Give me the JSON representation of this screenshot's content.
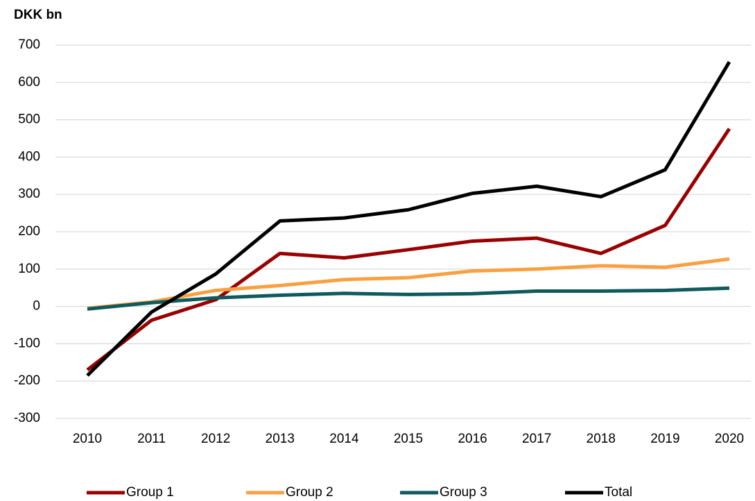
{
  "chart_data": {
    "type": "line",
    "y_label": "DKK bn",
    "categories": [
      "2010",
      "2011",
      "2012",
      "2013",
      "2014",
      "2015",
      "2016",
      "2017",
      "2018",
      "2019",
      "2020"
    ],
    "series": [
      {
        "name": "Group 1",
        "color": "#990000",
        "values": [
          -170,
          -37,
          18,
          142,
          130,
          152,
          175,
          183,
          142,
          217,
          476
        ]
      },
      {
        "name": "Group 2",
        "color": "#f9a040",
        "values": [
          -5,
          12,
          43,
          56,
          72,
          77,
          95,
          100,
          109,
          105,
          127
        ]
      },
      {
        "name": "Group 3",
        "color": "#0e5a5c",
        "values": [
          -7,
          10,
          23,
          30,
          35,
          32,
          34,
          41,
          41,
          43,
          49
        ]
      },
      {
        "name": "Total",
        "color": "#000000",
        "values": [
          -185,
          -15,
          87,
          229,
          237,
          259,
          303,
          322,
          294,
          366,
          655
        ]
      }
    ],
    "ylim": [
      -300,
      700
    ],
    "yticks": [
      -300,
      -200,
      -100,
      0,
      100,
      200,
      300,
      400,
      500,
      600,
      700
    ],
    "grid": true,
    "legend": "bottom"
  }
}
